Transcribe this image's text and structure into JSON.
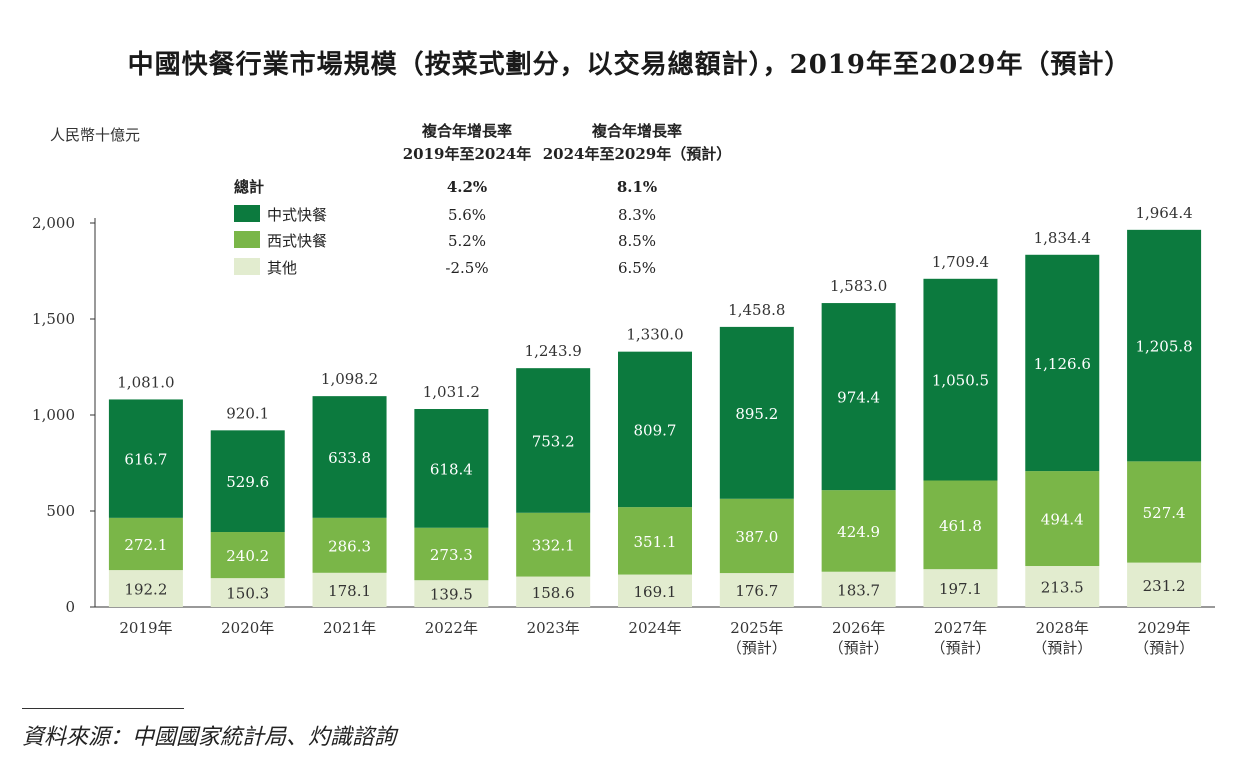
{
  "title": "中國快餐行業市場規模（按菜式劃分，以交易總額計），2019年至2029年（預計）",
  "source": "資料來源：中國國家統計局、灼識諮詢",
  "chart_data": {
    "type": "bar",
    "stacked": true,
    "ylabel": "人民幣十億元",
    "ylim": [
      0,
      2000
    ],
    "yticks": [
      0,
      500,
      1000,
      1500,
      2000
    ],
    "ytick_labels": [
      "0",
      "500",
      "1,000",
      "1,500",
      "2,000"
    ],
    "categories": [
      "2019年",
      "2020年",
      "2021年",
      "2022年",
      "2023年",
      "2024年",
      "2025年\n（預計）",
      "2026年\n（預計）",
      "2027年\n（預計）",
      "2028年\n（預計）",
      "2029年\n（預計）"
    ],
    "series": [
      {
        "name": "其他",
        "color": "#e2eccf",
        "values": [
          192.2,
          150.3,
          178.1,
          139.5,
          158.6,
          169.1,
          176.7,
          183.7,
          197.1,
          213.5,
          231.2
        ],
        "labels": [
          "192.2",
          "150.3",
          "178.1",
          "139.5",
          "158.6",
          "169.1",
          "176.7",
          "183.7",
          "197.1",
          "213.5",
          "231.2"
        ]
      },
      {
        "name": "西式快餐",
        "color": "#7ab648",
        "values": [
          272.1,
          240.2,
          286.3,
          273.3,
          332.1,
          351.1,
          387.0,
          424.9,
          461.8,
          494.4,
          527.4
        ],
        "labels": [
          "272.1",
          "240.2",
          "286.3",
          "273.3",
          "332.1",
          "351.1",
          "387.0",
          "424.9",
          "461.8",
          "494.4",
          "527.4"
        ]
      },
      {
        "name": "中式快餐",
        "color": "#0c7a3e",
        "values": [
          616.7,
          529.6,
          633.8,
          618.4,
          753.2,
          809.7,
          895.2,
          974.4,
          1050.5,
          1126.6,
          1205.8
        ],
        "labels": [
          "616.7",
          "529.6",
          "633.8",
          "618.4",
          "753.2",
          "809.7",
          "895.2",
          "974.4",
          "1,050.5",
          "1,126.6",
          "1,205.8"
        ]
      }
    ],
    "totals": [
      1081.0,
      920.1,
      1098.2,
      1031.2,
      1243.9,
      1330.0,
      1458.8,
      1583.0,
      1709.4,
      1834.4,
      1964.4
    ],
    "total_labels": [
      "1,081.0",
      "920.1",
      "1,098.2",
      "1,031.2",
      "1,243.9",
      "1,330.0",
      "1,458.8",
      "1,583.0",
      "1,709.4",
      "1,834.4",
      "1,964.4"
    ],
    "cagr_table": {
      "headers": [
        [
          "複合年增長率",
          "2019年至2024年"
        ],
        [
          "複合年增長率",
          "2024年至2029年（預計）"
        ]
      ],
      "rows": [
        {
          "name": "總計",
          "v1": "4.2%",
          "v2": "8.1%",
          "bold": true
        },
        {
          "name": "中式快餐",
          "v1": "5.6%",
          "v2": "8.3%",
          "color": "#0c7a3e"
        },
        {
          "name": "西式快餐",
          "v1": "5.2%",
          "v2": "8.5%",
          "color": "#7ab648"
        },
        {
          "name": "其他",
          "v1": "-2.5%",
          "v2": "6.5%",
          "color": "#e2eccf"
        }
      ]
    },
    "grid": false,
    "legend": "top-left"
  }
}
